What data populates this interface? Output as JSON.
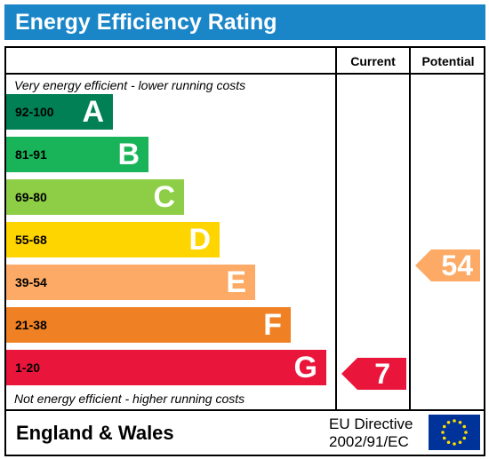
{
  "title": "Energy Efficiency Rating",
  "columns": {
    "current": "Current",
    "potential": "Potential"
  },
  "top_note": "Very energy efficient - lower running costs",
  "bottom_note": "Not energy efficient - higher running costs",
  "bands": [
    {
      "range": "92-100",
      "letter": "A",
      "color": "#008054"
    },
    {
      "range": "81-91",
      "letter": "B",
      "color": "#19b459"
    },
    {
      "range": "69-80",
      "letter": "C",
      "color": "#8dce46"
    },
    {
      "range": "55-68",
      "letter": "D",
      "color": "#ffd500"
    },
    {
      "range": "39-54",
      "letter": "E",
      "color": "#fcaa65"
    },
    {
      "range": "21-38",
      "letter": "F",
      "color": "#ef8023"
    },
    {
      "range": "1-20",
      "letter": "G",
      "color": "#e9153b"
    }
  ],
  "current_rating": {
    "value": "7",
    "band": "G",
    "color": "#e9153b"
  },
  "potential_rating": {
    "value": "54",
    "band": "E",
    "color": "#fcaa65"
  },
  "footer": {
    "region": "England & Wales",
    "directive_line1": "EU Directive",
    "directive_line2": "2002/91/EC"
  },
  "colors": {
    "header": "#1a86c8",
    "eu_flag": "#003399",
    "eu_stars": "#ffdd00"
  },
  "icons": {
    "eu_flag": "eu-flag-icon"
  }
}
